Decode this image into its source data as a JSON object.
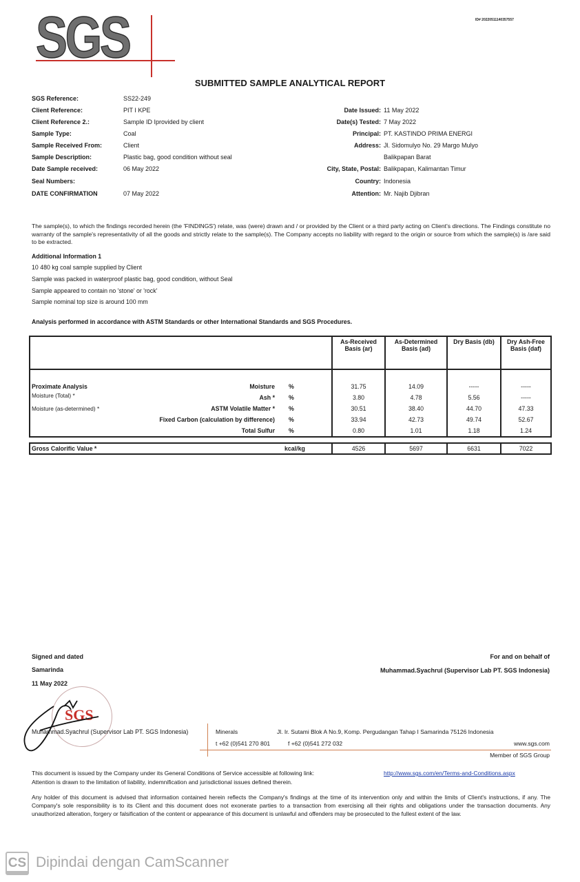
{
  "logo": {
    "text": "SGS",
    "accent": "#c8302a"
  },
  "doc_id": "ID# 20220511140357557",
  "title": "SUBMITTED SAMPLE ANALYTICAL REPORT",
  "left_fields": [
    {
      "label": "SGS Reference:",
      "value": "SS22-249"
    },
    {
      "label": "Client Reference:",
      "value": "PIT I KPE"
    },
    {
      "label": "Client Reference 2.:",
      "value": "Sample ID Iprovided by client"
    },
    {
      "label": "Sample Type:",
      "value": "Coal"
    },
    {
      "label": "Sample Received From:",
      "value": "Client"
    },
    {
      "label": "Sample Description:",
      "value": "Plastic bag, good condition without seal"
    },
    {
      "label": "Date Sample received:",
      "value": "06 May 2022"
    },
    {
      "label": "Seal Numbers:",
      "value": ""
    },
    {
      "label": "DATE CONFIRMATION",
      "value": "07 May 2022"
    }
  ],
  "right_fields": [
    {
      "label": "Date Issued:",
      "value": "11 May 2022"
    },
    {
      "label": "Date(s) Tested:",
      "value": "7 May 2022"
    },
    {
      "label": "Principal:",
      "value": "PT. KASTINDO PRIMA ENERGI"
    },
    {
      "label": "Address:",
      "value": "Jl. Sidomulyo No. 29 Margo Mulyo"
    },
    {
      "label": "",
      "value": "Balikpapan Barat"
    },
    {
      "label": "City, State, Postal:",
      "value": "Balikpapan, Kalimantan Timur"
    },
    {
      "label": "Country:",
      "value": "Indonesia"
    },
    {
      "label": "Attention:",
      "value": "Mr. Najib Djibran"
    }
  ],
  "findings_text": "The sample(s), to which the findings recorded herein (the 'FINDINGS') relate, was (were) drawn and / or provided by the Client or a third party acting on Client's directions. The Findings constitute no warranty of the sample's representativity of all the goods and strictly relate to the sample(s). The Company accepts no liability with regard to the origin or source from which the sample(s) is /are said to be extracted.",
  "additional_info": {
    "heading": "Additional Information 1",
    "lines": [
      "10 480 kg coal sample supplied by Client",
      "Sample was packed in waterproof plastic bag, good condition, without Seal",
      "Sample appeared to contain no 'stone' or 'rock'",
      "Sample nominal top size is around 100 mm"
    ]
  },
  "analysis_note": "Analysis performed in accordance with ASTM Standards or other International Standards and SGS Procedures.",
  "analysis_table": {
    "columns": [
      "As-Received Basis (ar)",
      "As-Determined Basis (ad)",
      "Dry Basis (db)",
      "Dry Ash-Free Basis (daf)"
    ],
    "left_labels": [
      "Proximate Analysis",
      "Moisture (Total)  *",
      "Moisture (as-determined)  *"
    ],
    "rows": [
      {
        "param": "Moisture",
        "unit": "%",
        "ar": "31.75",
        "ad": "14.09",
        "db": "-----",
        "daf": "-----"
      },
      {
        "param": "Ash  *",
        "unit": "%",
        "ar": "3.80",
        "ad": "4.78",
        "db": "5.56",
        "daf": "-----"
      },
      {
        "param": "ASTM Volatile Matter  *",
        "unit": "%",
        "ar": "30.51",
        "ad": "38.40",
        "db": "44.70",
        "daf": "47.33"
      },
      {
        "param": "Fixed Carbon (calculation by difference)",
        "unit": "%",
        "ar": "33.94",
        "ad": "42.73",
        "db": "49.74",
        "daf": "52.67"
      },
      {
        "param": "Total Sulfur",
        "unit": "%",
        "ar": "0.80",
        "ad": "1.01",
        "db": "1.18",
        "daf": "1.24"
      }
    ],
    "gcv": {
      "label": "Gross Calorific Value  *",
      "unit": "kcal/kg",
      "ar": "4526",
      "ad": "5697",
      "db": "6631",
      "daf": "7022"
    }
  },
  "signature": {
    "signed_label": "Signed and dated",
    "place": "Samarinda",
    "date": "11 May 2022",
    "behalf_label": "For and on behalf of",
    "behalf_name": "Muhammad.Syachrul (Supervisor Lab PT. SGS Indonesia)",
    "signer_line": "Muhammad.Syachrul (Supervisor Lab PT. SGS Indonesia)",
    "seal_text": "SGS"
  },
  "office": {
    "division": "Minerals",
    "address": "Jl. Ir. Sutami Blok A No.9, Komp. Pergudangan Tahap I Samarinda 75126 Indonesia",
    "phone": "t  +62 (0)541 270 801",
    "fax": "f  +62 (0)541 272 032",
    "website": "www.sgs.com",
    "member": "Member of SGS Group"
  },
  "footer": {
    "conditions_line1": "This document is issued by the Company under its General Conditions of Service accessible at following link:",
    "conditions_link": "http://www.sgs.com/en/Terms-and-Conditions.aspx",
    "conditions_line2": "Attention is drawn to the limitation of liability, indemnification and jurisdictional issues defined therein.",
    "holder_text": "Any holder of this document is advised that information contained herein reflects the Company's findings at the time of its intervention only and within the limits of Client's instructions, if any.  The Company's sole responsibility is to its Client and this document does not exonerate parties to a transaction from exercising all their rights and obligations under the transaction documents. Any unauthorized alteration, forgery or falsification of the content or appearance of this document is unlawful and offenders may be prosecuted to the fullest extent of the law."
  },
  "watermark": {
    "logo": "CS",
    "text": "Dipindai dengan CamScanner"
  }
}
